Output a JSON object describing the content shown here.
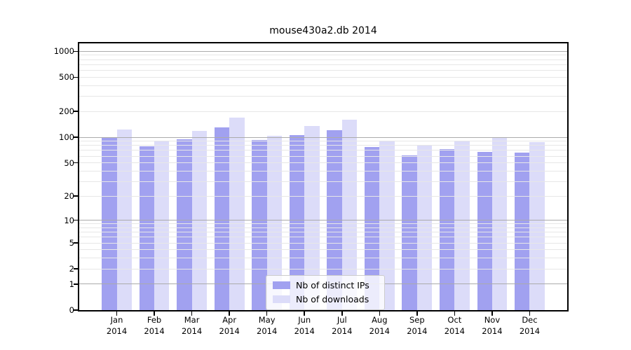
{
  "chart_data": {
    "type": "bar",
    "title": "mouse430a2.db 2014",
    "xlabel": "",
    "ylabel": "",
    "categories": [
      "Jan 2014",
      "Feb 2014",
      "Mar 2014",
      "Apr 2014",
      "May 2014",
      "Jun 2014",
      "Jul 2014",
      "Aug 2014",
      "Sep 2014",
      "Oct 2014",
      "Nov 2014",
      "Dec 2014"
    ],
    "series": [
      {
        "name": "Nb of distinct IPs",
        "color": "#a1a1f0",
        "values": [
          100,
          78,
          95,
          131,
          92,
          106,
          120,
          77,
          61,
          73,
          67,
          66
        ]
      },
      {
        "name": "Nb of downloads",
        "color": "#dcdcf9",
        "values": [
          122,
          89,
          118,
          171,
          103,
          134,
          161,
          91,
          82,
          90,
          98,
          88
        ]
      }
    ],
    "yscale": "log1p",
    "ylim": [
      0,
      1235
    ],
    "y_ticks": [
      0,
      1,
      2,
      5,
      10,
      20,
      50,
      100,
      200,
      500,
      1000
    ],
    "y_major_gridlines": [
      1,
      10,
      100,
      1000
    ],
    "y_minor_gridlines": [
      2,
      3,
      4,
      5,
      6,
      7,
      8,
      9,
      20,
      30,
      40,
      50,
      60,
      70,
      80,
      90,
      200,
      300,
      400,
      500,
      600,
      700,
      800,
      900
    ],
    "grid": true,
    "legend_position": "lower-center",
    "colors": {
      "major_grid": "#ababab",
      "minor_grid": "#e7e7e7",
      "axis_frame": "#000000",
      "legend_border": "#cccccc"
    }
  }
}
